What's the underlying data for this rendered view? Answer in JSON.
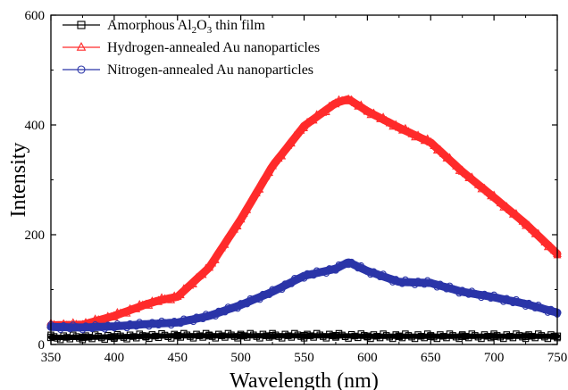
{
  "chart_data": {
    "type": "scatter",
    "xlabel": "Wavelength (nm)",
    "ylabel": "Intensity",
    "xlim": [
      350,
      750
    ],
    "ylim": [
      0,
      600
    ],
    "x_ticks": [
      "350",
      "400",
      "450",
      "500",
      "550",
      "600",
      "650",
      "700",
      "750"
    ],
    "y_ticks": [
      "0",
      "200",
      "400",
      "600"
    ],
    "grid": false,
    "legend_position": "top-left",
    "series": [
      {
        "name": "Amorphous Al2O3 thin film",
        "legend_parts": [
          {
            "text": "Amorphous Al",
            "sub": false
          },
          {
            "text": "2",
            "sub": true
          },
          {
            "text": "O",
            "sub": false
          },
          {
            "text": "3",
            "sub": true
          },
          {
            "text": " thin film",
            "sub": false
          }
        ],
        "color": "#000000",
        "marker": "square",
        "x": [
          350,
          375,
          400,
          425,
          450,
          475,
          500,
          525,
          550,
          575,
          600,
          625,
          650,
          675,
          700,
          725,
          750
        ],
        "y": [
          13,
          13,
          14,
          15,
          16,
          16,
          16,
          16,
          16,
          16,
          15,
          15,
          15,
          15,
          15,
          15,
          15
        ]
      },
      {
        "name": "Hydrogen-annealed Au nanoparticles",
        "color": "#ff2b2b",
        "marker": "triangle",
        "x": [
          350,
          375,
          400,
          425,
          435,
          450,
          475,
          500,
          525,
          550,
          575,
          585,
          600,
          625,
          650,
          675,
          700,
          725,
          750
        ],
        "y": [
          35,
          36,
          52,
          73,
          80,
          87,
          140,
          228,
          325,
          398,
          440,
          447,
          425,
          395,
          368,
          315,
          268,
          220,
          165
        ]
      },
      {
        "name": "Nitrogen-annealed Au nanoparticles",
        "color": "#2b35a8",
        "marker": "circle",
        "x": [
          350,
          375,
          400,
          425,
          450,
          475,
          500,
          525,
          550,
          575,
          585,
          600,
          625,
          650,
          675,
          700,
          725,
          750
        ],
        "y": [
          32,
          31,
          33,
          37,
          40,
          52,
          72,
          96,
          125,
          138,
          150,
          134,
          114,
          112,
          96,
          86,
          74,
          58
        ]
      }
    ]
  }
}
